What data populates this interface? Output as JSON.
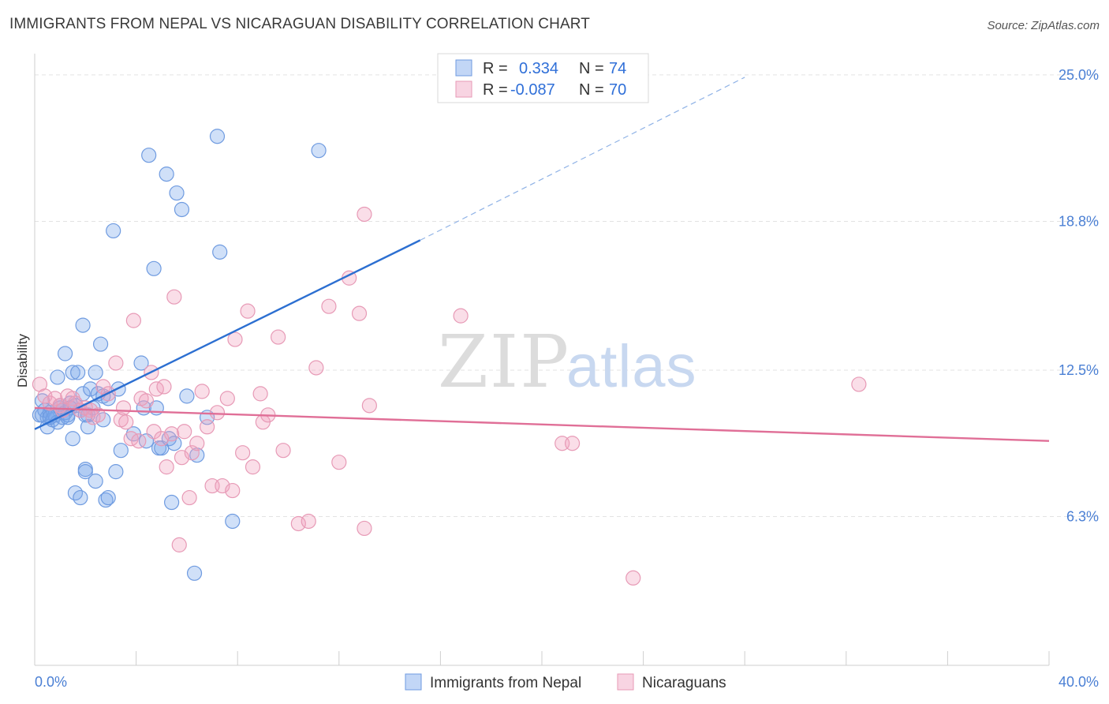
{
  "title": "IMMIGRANTS FROM NEPAL VS NICARAGUAN DISABILITY CORRELATION CHART",
  "source": "Source: ZipAtlas.com",
  "colors": {
    "blue": "#4a7fd4",
    "blue_fill": "rgba(120,165,235,0.35)",
    "blue_line": "#2c6fd1",
    "pink": "#e06f97",
    "pink_fill": "rgba(240,160,190,0.35)",
    "grid": "#e3e3e3"
  },
  "legend": {
    "rows": [
      {
        "r_label": "R =",
        "r_value": "0.334",
        "n_label": "N =",
        "n_value": "74",
        "series": "blue"
      },
      {
        "r_label": "R =",
        "r_value": "-0.087",
        "n_label": "N =",
        "n_value": "70",
        "series": "pink"
      }
    ]
  },
  "chart_data": {
    "type": "scatter",
    "ylabel": "Disability",
    "xlim": [
      0,
      40
    ],
    "ylim": [
      0,
      25.9
    ],
    "y_ticks": [
      {
        "value": 6.3,
        "label": "6.3%"
      },
      {
        "value": 12.5,
        "label": "12.5%"
      },
      {
        "value": 18.8,
        "label": "18.8%"
      },
      {
        "value": 25.0,
        "label": "25.0%"
      }
    ],
    "x_ticks": [
      {
        "value": 0,
        "label": "0.0%"
      },
      {
        "value": 40,
        "label": "40.0%"
      }
    ],
    "series": [
      {
        "name": "Immigrants from Nepal",
        "color": "blue",
        "trend": {
          "x0": 0,
          "y0": 10.0,
          "x1": 15.2,
          "y1": 18.0,
          "dash_to_x": 28.0,
          "dash_to_y": 24.9
        },
        "points": [
          [
            0.3,
            10.6
          ],
          [
            0.3,
            11.2
          ],
          [
            0.4,
            10.8
          ],
          [
            0.5,
            10.5
          ],
          [
            0.5,
            10.1
          ],
          [
            0.6,
            10.7
          ],
          [
            0.7,
            10.4
          ],
          [
            0.8,
            10.6
          ],
          [
            0.9,
            12.2
          ],
          [
            0.9,
            10.3
          ],
          [
            1.0,
            10.9
          ],
          [
            1.0,
            11.0
          ],
          [
            1.1,
            10.5
          ],
          [
            1.1,
            10.8
          ],
          [
            1.2,
            13.2
          ],
          [
            1.2,
            10.7
          ],
          [
            1.3,
            10.6
          ],
          [
            1.4,
            11.1
          ],
          [
            1.4,
            10.9
          ],
          [
            1.5,
            12.4
          ],
          [
            1.5,
            9.6
          ],
          [
            1.6,
            11.0
          ],
          [
            1.6,
            7.3
          ],
          [
            1.7,
            12.4
          ],
          [
            1.8,
            10.8
          ],
          [
            1.8,
            7.1
          ],
          [
            1.9,
            14.4
          ],
          [
            1.9,
            11.5
          ],
          [
            2.0,
            8.3
          ],
          [
            2.0,
            8.2
          ],
          [
            2.1,
            10.6
          ],
          [
            2.1,
            10.1
          ],
          [
            2.2,
            11.7
          ],
          [
            2.3,
            10.9
          ],
          [
            2.4,
            7.8
          ],
          [
            2.4,
            12.4
          ],
          [
            2.5,
            11.5
          ],
          [
            2.6,
            13.6
          ],
          [
            2.7,
            10.4
          ],
          [
            2.7,
            11.4
          ],
          [
            2.8,
            7.0
          ],
          [
            2.9,
            7.1
          ],
          [
            2.9,
            11.3
          ],
          [
            3.1,
            18.4
          ],
          [
            3.2,
            8.2
          ],
          [
            3.3,
            11.7
          ],
          [
            3.4,
            9.1
          ],
          [
            3.9,
            9.8
          ],
          [
            4.2,
            12.8
          ],
          [
            4.3,
            10.9
          ],
          [
            4.4,
            9.5
          ],
          [
            4.5,
            21.6
          ],
          [
            4.7,
            16.8
          ],
          [
            4.8,
            10.9
          ],
          [
            4.9,
            9.2
          ],
          [
            5.0,
            9.2
          ],
          [
            5.2,
            20.8
          ],
          [
            5.3,
            9.6
          ],
          [
            5.4,
            6.9
          ],
          [
            5.5,
            9.4
          ],
          [
            5.6,
            20.0
          ],
          [
            5.8,
            19.3
          ],
          [
            6.0,
            11.4
          ],
          [
            6.3,
            3.9
          ],
          [
            6.4,
            8.9
          ],
          [
            6.8,
            10.5
          ],
          [
            7.2,
            22.4
          ],
          [
            7.3,
            17.5
          ],
          [
            7.8,
            6.1
          ],
          [
            11.2,
            21.8
          ],
          [
            0.2,
            10.6
          ],
          [
            0.6,
            10.5
          ],
          [
            1.3,
            10.5
          ],
          [
            2.0,
            10.6
          ]
        ]
      },
      {
        "name": "Nicaraguans",
        "color": "pink",
        "trend": {
          "x0": 0,
          "y0": 10.9,
          "x1": 40,
          "y1": 9.5
        },
        "points": [
          [
            0.2,
            11.9
          ],
          [
            0.4,
            11.4
          ],
          [
            0.6,
            11.1
          ],
          [
            0.8,
            11.3
          ],
          [
            1.0,
            11.0
          ],
          [
            1.1,
            10.8
          ],
          [
            1.3,
            11.4
          ],
          [
            1.5,
            11.3
          ],
          [
            1.6,
            11.1
          ],
          [
            1.8,
            10.8
          ],
          [
            2.0,
            10.9
          ],
          [
            2.2,
            10.8
          ],
          [
            2.3,
            10.5
          ],
          [
            2.5,
            10.6
          ],
          [
            2.7,
            11.8
          ],
          [
            2.9,
            11.5
          ],
          [
            3.2,
            12.8
          ],
          [
            3.4,
            10.4
          ],
          [
            3.5,
            10.9
          ],
          [
            3.6,
            10.3
          ],
          [
            3.8,
            9.6
          ],
          [
            3.9,
            14.6
          ],
          [
            4.1,
            9.5
          ],
          [
            4.2,
            11.3
          ],
          [
            4.4,
            11.2
          ],
          [
            4.6,
            12.4
          ],
          [
            4.7,
            9.9
          ],
          [
            4.8,
            11.7
          ],
          [
            5.0,
            9.6
          ],
          [
            5.1,
            11.8
          ],
          [
            5.2,
            8.4
          ],
          [
            5.4,
            9.8
          ],
          [
            5.5,
            15.6
          ],
          [
            5.7,
            5.1
          ],
          [
            5.8,
            8.8
          ],
          [
            5.9,
            9.9
          ],
          [
            6.1,
            7.1
          ],
          [
            6.2,
            9.0
          ],
          [
            6.4,
            9.4
          ],
          [
            6.6,
            11.6
          ],
          [
            6.8,
            10.1
          ],
          [
            7.0,
            7.6
          ],
          [
            7.2,
            10.7
          ],
          [
            7.4,
            7.6
          ],
          [
            7.6,
            11.3
          ],
          [
            7.8,
            7.4
          ],
          [
            7.9,
            13.8
          ],
          [
            8.2,
            9.0
          ],
          [
            8.4,
            15.0
          ],
          [
            8.6,
            8.4
          ],
          [
            8.9,
            11.5
          ],
          [
            9.0,
            10.3
          ],
          [
            9.2,
            10.6
          ],
          [
            9.6,
            13.9
          ],
          [
            9.8,
            9.1
          ],
          [
            10.4,
            6.0
          ],
          [
            10.8,
            6.1
          ],
          [
            11.1,
            12.6
          ],
          [
            11.6,
            15.2
          ],
          [
            12.0,
            8.6
          ],
          [
            12.4,
            16.4
          ],
          [
            12.8,
            14.9
          ],
          [
            13.0,
            5.8
          ],
          [
            13.2,
            11.0
          ],
          [
            13.0,
            19.1
          ],
          [
            16.8,
            14.8
          ],
          [
            20.8,
            9.4
          ],
          [
            21.2,
            9.4
          ],
          [
            23.6,
            3.7
          ],
          [
            32.5,
            11.9
          ]
        ]
      }
    ]
  },
  "watermark": {
    "zip": "ZIP",
    "atlas": "atlas"
  }
}
